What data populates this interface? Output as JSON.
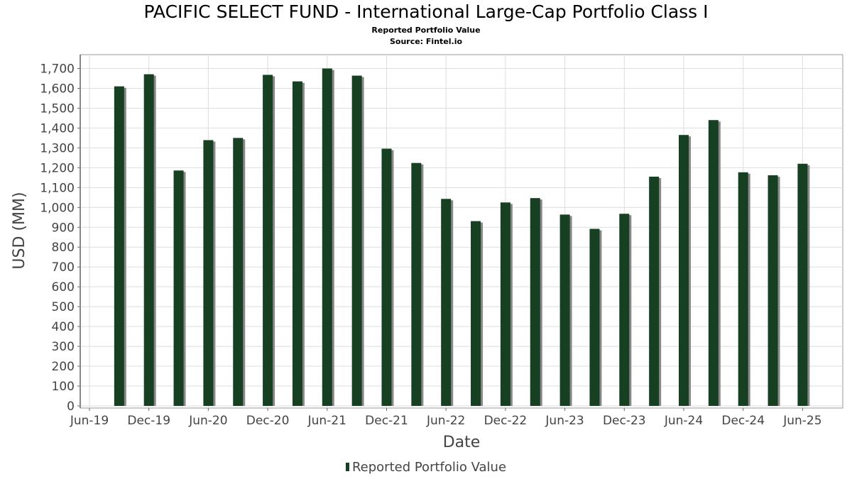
{
  "chart_data": {
    "type": "bar",
    "title": "PACIFIC SELECT FUND - International Large-Cap Portfolio Class I",
    "subtitle": "Reported Portfolio Value",
    "source": "Source: Fintel.io",
    "xlabel": "Date",
    "ylabel": "USD (MM)",
    "ylim": [
      0,
      1780
    ],
    "yticks": [
      0,
      100,
      200,
      300,
      400,
      500,
      600,
      700,
      800,
      900,
      1000,
      1100,
      1200,
      1300,
      1400,
      1500,
      1600,
      1700
    ],
    "ytick_labels": [
      "0",
      "100",
      "200",
      "300",
      "400",
      "500",
      "600",
      "700",
      "800",
      "900",
      "1,000",
      "1,100",
      "1,200",
      "1,300",
      "1,400",
      "1,500",
      "1,600",
      "1,700"
    ],
    "xtick_labels": [
      "Jun-19",
      "Dec-19",
      "Jun-20",
      "Dec-20",
      "Jun-21",
      "Dec-21",
      "Jun-22",
      "Dec-22",
      "Jun-23",
      "Dec-23",
      "Jun-24",
      "Dec-24",
      "Jun-25"
    ],
    "categories": [
      "Sep-19",
      "Dec-19",
      "Mar-20",
      "Jun-20",
      "Sep-20",
      "Dec-20",
      "Mar-21",
      "Jun-21",
      "Sep-21",
      "Dec-21",
      "Mar-22",
      "Jun-22",
      "Sep-22",
      "Dec-22",
      "Mar-23",
      "Jun-23",
      "Sep-23",
      "Dec-23",
      "Mar-24",
      "Jun-24",
      "Sep-24",
      "Dec-24",
      "Mar-25",
      "Jun-25"
    ],
    "series": [
      {
        "name": "Reported Portfolio Value",
        "color": "#173f22",
        "values": [
          1610,
          1671,
          1186,
          1339,
          1350,
          1668,
          1635,
          1700,
          1664,
          1296,
          1224,
          1043,
          931,
          1025,
          1047,
          964,
          892,
          968,
          1155,
          1365,
          1440,
          1177,
          1162,
          1220
        ]
      }
    ],
    "grid": true,
    "legend": "bottom-center"
  }
}
